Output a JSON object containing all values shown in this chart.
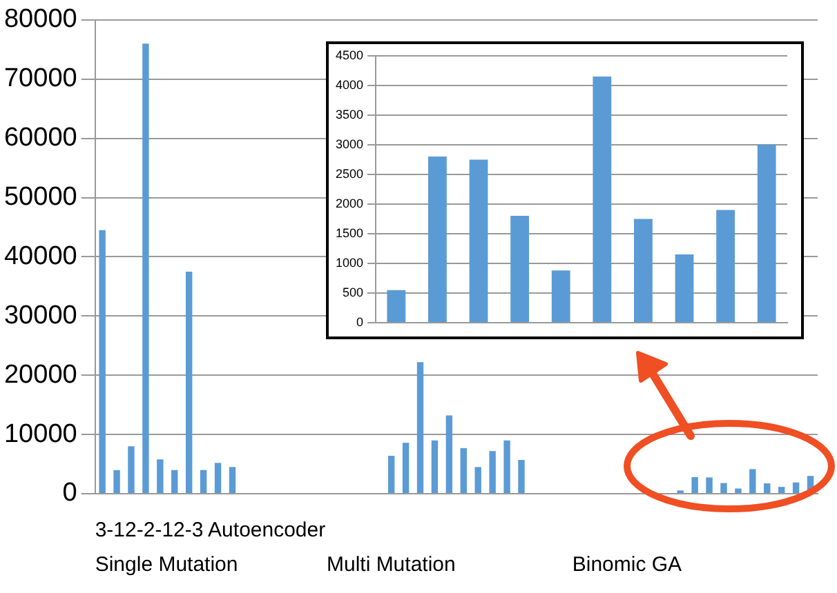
{
  "chart_data": [
    {
      "type": "bar",
      "xlabel": "3-12-2-12-3 Autoencoder",
      "annotations": [
        "Single Mutation",
        "Multi Mutation",
        "Binomic GA"
      ],
      "categories": [
        null,
        null,
        null,
        null,
        null,
        null,
        null,
        null,
        null,
        null,
        null,
        null,
        null,
        null,
        null,
        null,
        null,
        null,
        null,
        null,
        null,
        null,
        null,
        null,
        null,
        null,
        null,
        null,
        null,
        null,
        null,
        null,
        null,
        null,
        null,
        null,
        null,
        null,
        null,
        null,
        null,
        null,
        null,
        null,
        null,
        null,
        null,
        null,
        null,
        null
      ],
      "values": [
        44500,
        4000,
        8000,
        76000,
        5800,
        4000,
        37500,
        4000,
        5200,
        4500,
        null,
        null,
        null,
        null,
        null,
        null,
        null,
        null,
        null,
        null,
        6400,
        8600,
        22200,
        9000,
        13200,
        7700,
        4500,
        7200,
        9000,
        5700,
        null,
        null,
        null,
        null,
        null,
        null,
        null,
        null,
        null,
        null,
        550,
        2800,
        2750,
        1800,
        880,
        4150,
        1750,
        1150,
        1900,
        3000
      ],
      "color": "#5b9bd5",
      "ylim": [
        0,
        80000
      ],
      "yticks": [
        0,
        10000,
        20000,
        30000,
        40000,
        50000,
        60000,
        70000,
        80000
      ],
      "grid": "y",
      "legend": false
    },
    {
      "type": "bar",
      "categories": [
        null,
        null,
        null,
        null,
        null,
        null,
        null,
        null,
        null,
        null
      ],
      "values": [
        550,
        2800,
        2750,
        1800,
        880,
        4150,
        1750,
        1150,
        1900,
        3000
      ],
      "color": "#5b9bd5",
      "ylim": [
        0,
        4500
      ],
      "yticks": [
        0,
        500,
        1000,
        1500,
        2000,
        2500,
        3000,
        3500,
        4000,
        4500
      ],
      "grid": "y",
      "legend": false
    }
  ]
}
